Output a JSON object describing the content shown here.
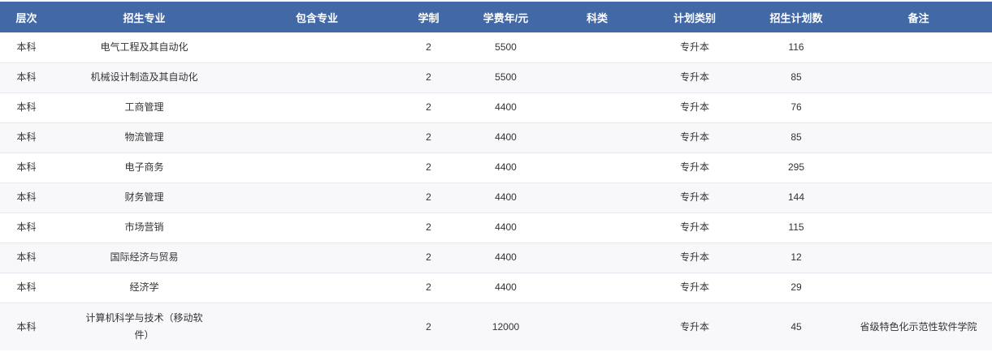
{
  "table": {
    "header_bg": "#4268a6",
    "stripe_bg": "#f8f8fa",
    "border_color": "#e7e7ef",
    "columns": [
      {
        "key": "level",
        "label": "层次"
      },
      {
        "key": "major",
        "label": "招生专业"
      },
      {
        "key": "included",
        "label": "包含专业"
      },
      {
        "key": "duration",
        "label": "学制"
      },
      {
        "key": "tuition",
        "label": "学费年/元"
      },
      {
        "key": "category",
        "label": "科类"
      },
      {
        "key": "plan_type",
        "label": "计划类别"
      },
      {
        "key": "plan_count",
        "label": "招生计划数"
      },
      {
        "key": "remark",
        "label": "备注"
      }
    ],
    "rows": [
      {
        "level": "本科",
        "major": "电气工程及其自动化",
        "included": "",
        "duration": "2",
        "tuition": "5500",
        "category": "",
        "plan_type": "专升本",
        "plan_count": "116",
        "remark": ""
      },
      {
        "level": "本科",
        "major": "机械设计制造及其自动化",
        "included": "",
        "duration": "2",
        "tuition": "5500",
        "category": "",
        "plan_type": "专升本",
        "plan_count": "85",
        "remark": ""
      },
      {
        "level": "本科",
        "major": "工商管理",
        "included": "",
        "duration": "2",
        "tuition": "4400",
        "category": "",
        "plan_type": "专升本",
        "plan_count": "76",
        "remark": ""
      },
      {
        "level": "本科",
        "major": "物流管理",
        "included": "",
        "duration": "2",
        "tuition": "4400",
        "category": "",
        "plan_type": "专升本",
        "plan_count": "85",
        "remark": ""
      },
      {
        "level": "本科",
        "major": "电子商务",
        "included": "",
        "duration": "2",
        "tuition": "4400",
        "category": "",
        "plan_type": "专升本",
        "plan_count": "295",
        "remark": ""
      },
      {
        "level": "本科",
        "major": "财务管理",
        "included": "",
        "duration": "2",
        "tuition": "4400",
        "category": "",
        "plan_type": "专升本",
        "plan_count": "144",
        "remark": ""
      },
      {
        "level": "本科",
        "major": "市场营销",
        "included": "",
        "duration": "2",
        "tuition": "4400",
        "category": "",
        "plan_type": "专升本",
        "plan_count": "115",
        "remark": ""
      },
      {
        "level": "本科",
        "major": "国际经济与贸易",
        "included": "",
        "duration": "2",
        "tuition": "4400",
        "category": "",
        "plan_type": "专升本",
        "plan_count": "12",
        "remark": ""
      },
      {
        "level": "本科",
        "major": "经济学",
        "included": "",
        "duration": "2",
        "tuition": "4400",
        "category": "",
        "plan_type": "专升本",
        "plan_count": "29",
        "remark": ""
      },
      {
        "level": "本科",
        "major": "计算机科学与技术（移动软件）",
        "included": "",
        "duration": "2",
        "tuition": "12000",
        "category": "",
        "plan_type": "专升本",
        "plan_count": "45",
        "remark": "省级特色化示范性软件学院"
      }
    ]
  }
}
